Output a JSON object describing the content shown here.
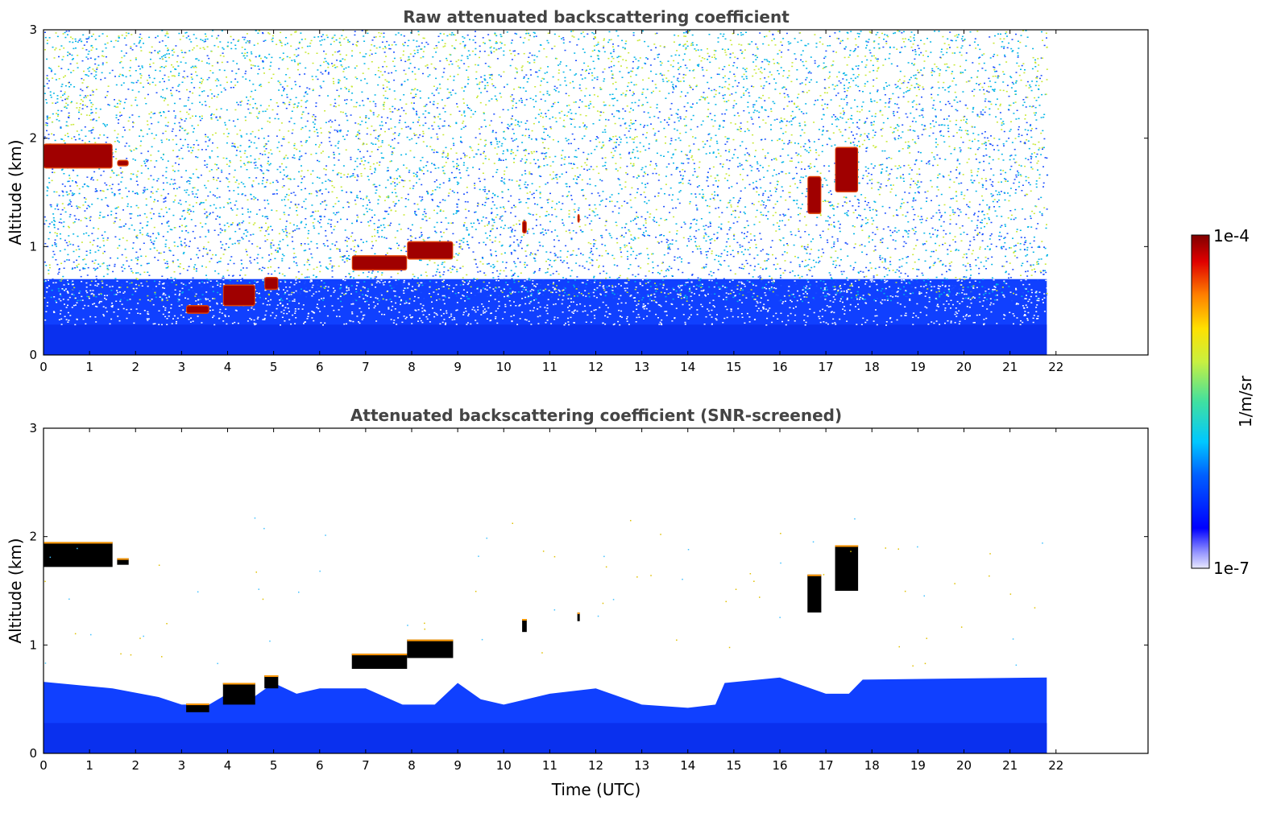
{
  "colors": {
    "ground_blue": "#1040ff",
    "clear_air": "#ffffff",
    "noise_low": "#1a4cff",
    "noise_mid": "#00b4e6",
    "noise_high": "#c8e832",
    "cloud_core": "#a00000",
    "screened_cloud": "#000000"
  },
  "chart_data": [
    {
      "type": "heatmap",
      "title": "Raw attenuated backscattering coefficient",
      "xlabel": "",
      "ylabel": "Altitude (km)",
      "xlim": [
        0,
        24
      ],
      "ylim": [
        0,
        3
      ],
      "x_tick_labels": [
        "0",
        "1",
        "2",
        "3",
        "4",
        "5",
        "6",
        "7",
        "8",
        "9",
        "10",
        "11",
        "12",
        "13",
        "14",
        "15",
        "16",
        "17",
        "18",
        "19",
        "20",
        "21",
        "22"
      ],
      "y_tick_labels": [
        "0",
        "1",
        "2",
        "3"
      ],
      "data_extent_x": [
        0,
        21.8
      ],
      "boundary_layer_top_km": 0.7,
      "features": [
        {
          "kind": "cloud",
          "x": [
            0,
            1.5
          ],
          "y": [
            1.72,
            1.95
          ]
        },
        {
          "kind": "cloud",
          "x": [
            1.6,
            1.85
          ],
          "y": [
            1.74,
            1.8
          ]
        },
        {
          "kind": "cloud",
          "x": [
            3.1,
            3.6
          ],
          "y": [
            0.38,
            0.46
          ]
        },
        {
          "kind": "cloud",
          "x": [
            3.9,
            4.6
          ],
          "y": [
            0.45,
            0.65
          ]
        },
        {
          "kind": "cloud",
          "x": [
            4.8,
            5.1
          ],
          "y": [
            0.6,
            0.72
          ]
        },
        {
          "kind": "cloud",
          "x": [
            6.7,
            7.9
          ],
          "y": [
            0.78,
            0.92
          ]
        },
        {
          "kind": "cloud",
          "x": [
            7.9,
            8.9
          ],
          "y": [
            0.88,
            1.05
          ]
        },
        {
          "kind": "cloud",
          "x": [
            10.4,
            10.5
          ],
          "y": [
            1.12,
            1.24
          ]
        },
        {
          "kind": "cloud",
          "x": [
            11.6,
            11.65
          ],
          "y": [
            1.22,
            1.3
          ]
        },
        {
          "kind": "cloud",
          "x": [
            16.6,
            16.9
          ],
          "y": [
            1.3,
            1.65
          ]
        },
        {
          "kind": "cloud",
          "x": [
            17.2,
            17.7
          ],
          "y": [
            1.5,
            1.92
          ]
        }
      ]
    },
    {
      "type": "heatmap",
      "title": "Attenuated backscattering coefficient (SNR-screened)",
      "xlabel": "Time (UTC)",
      "ylabel": "Altitude (km)",
      "xlim": [
        0,
        24
      ],
      "ylim": [
        0,
        3
      ],
      "x_tick_labels": [
        "0",
        "1",
        "2",
        "3",
        "4",
        "5",
        "6",
        "7",
        "8",
        "9",
        "10",
        "11",
        "12",
        "13",
        "14",
        "15",
        "16",
        "17",
        "18",
        "19",
        "20",
        "21",
        "22"
      ],
      "y_tick_labels": [
        "0",
        "1",
        "2",
        "3"
      ],
      "data_extent_x": [
        0,
        21.8
      ],
      "boundary_layer_top_km": [
        [
          0,
          0.66
        ],
        [
          1.5,
          0.6
        ],
        [
          2.5,
          0.52
        ],
        [
          3.0,
          0.45
        ],
        [
          3.6,
          0.45
        ],
        [
          4.0,
          0.55
        ],
        [
          4.5,
          0.5
        ],
        [
          5.0,
          0.65
        ],
        [
          5.5,
          0.55
        ],
        [
          6.0,
          0.6
        ],
        [
          7.0,
          0.6
        ],
        [
          7.8,
          0.45
        ],
        [
          8.5,
          0.45
        ],
        [
          9.0,
          0.65
        ],
        [
          9.5,
          0.5
        ],
        [
          10.0,
          0.45
        ],
        [
          11.0,
          0.55
        ],
        [
          12.0,
          0.6
        ],
        [
          13.0,
          0.45
        ],
        [
          14.0,
          0.42
        ],
        [
          14.6,
          0.45
        ],
        [
          14.8,
          0.65
        ],
        [
          16.0,
          0.7
        ],
        [
          17.0,
          0.55
        ],
        [
          17.5,
          0.55
        ],
        [
          17.8,
          0.68
        ],
        [
          21.8,
          0.7
        ]
      ]
    }
  ],
  "colorbar": {
    "label": "1/m/sr",
    "max_label": "1e-4",
    "min_label": "1e-7",
    "scale": "log",
    "range": [
      1e-07,
      0.0001
    ],
    "colormap": "jet"
  }
}
